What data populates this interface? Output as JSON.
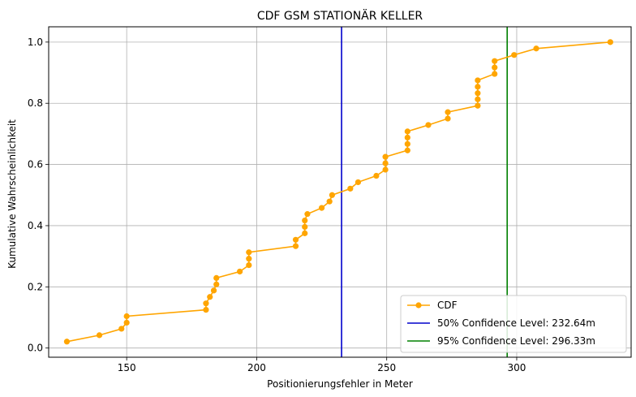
{
  "chart_data": {
    "type": "line",
    "title": "CDF GSM STATIONÄR KELLER",
    "xlabel": "Positionierungsfehler in Meter",
    "ylabel": "Kumulative Wahrscheinlichkeit",
    "xlim": [
      120,
      344
    ],
    "ylim": [
      -0.03,
      1.05
    ],
    "xticks": [
      150,
      200,
      250,
      300
    ],
    "yticks": [
      0.0,
      0.2,
      0.4,
      0.6,
      0.8,
      1.0
    ],
    "xtick_labels": [
      "150",
      "200",
      "250",
      "300"
    ],
    "ytick_labels": [
      "0.0",
      "0.2",
      "0.4",
      "0.6",
      "0.8",
      "1.0"
    ],
    "grid": true,
    "legend_position": "lower-right",
    "series": [
      {
        "name": "CDF",
        "color": "#FFA500",
        "marker": "circle",
        "x": [
          127,
          139.5,
          148,
          150,
          150,
          180.5,
          180.5,
          182,
          183.5,
          184.5,
          184.5,
          193.5,
          197,
          197,
          197,
          215,
          215,
          218.5,
          218.5,
          218.5,
          219.5,
          225,
          228,
          229,
          236,
          239,
          246,
          249.5,
          249.5,
          249.5,
          258,
          258,
          258,
          258,
          266,
          273.5,
          273.5,
          285,
          285,
          285,
          285,
          285,
          291.5,
          291.5,
          291.5,
          299,
          307.5,
          336
        ],
        "y": [
          0.021,
          0.042,
          0.063,
          0.083,
          0.104,
          0.125,
          0.146,
          0.167,
          0.188,
          0.208,
          0.229,
          0.25,
          0.271,
          0.292,
          0.313,
          0.333,
          0.354,
          0.375,
          0.396,
          0.417,
          0.438,
          0.458,
          0.479,
          0.5,
          0.521,
          0.542,
          0.563,
          0.583,
          0.604,
          0.625,
          0.646,
          0.667,
          0.688,
          0.708,
          0.729,
          0.75,
          0.771,
          0.792,
          0.813,
          0.833,
          0.854,
          0.875,
          0.896,
          0.917,
          0.938,
          0.958,
          0.979,
          1.0
        ]
      }
    ],
    "vlines": [
      {
        "name": "50% Confidence Level: 232.64m",
        "x": 232.64,
        "color": "#0000CC"
      },
      {
        "name": "95% Confidence Level: 296.33m",
        "x": 296.33,
        "color": "#008000"
      }
    ]
  }
}
